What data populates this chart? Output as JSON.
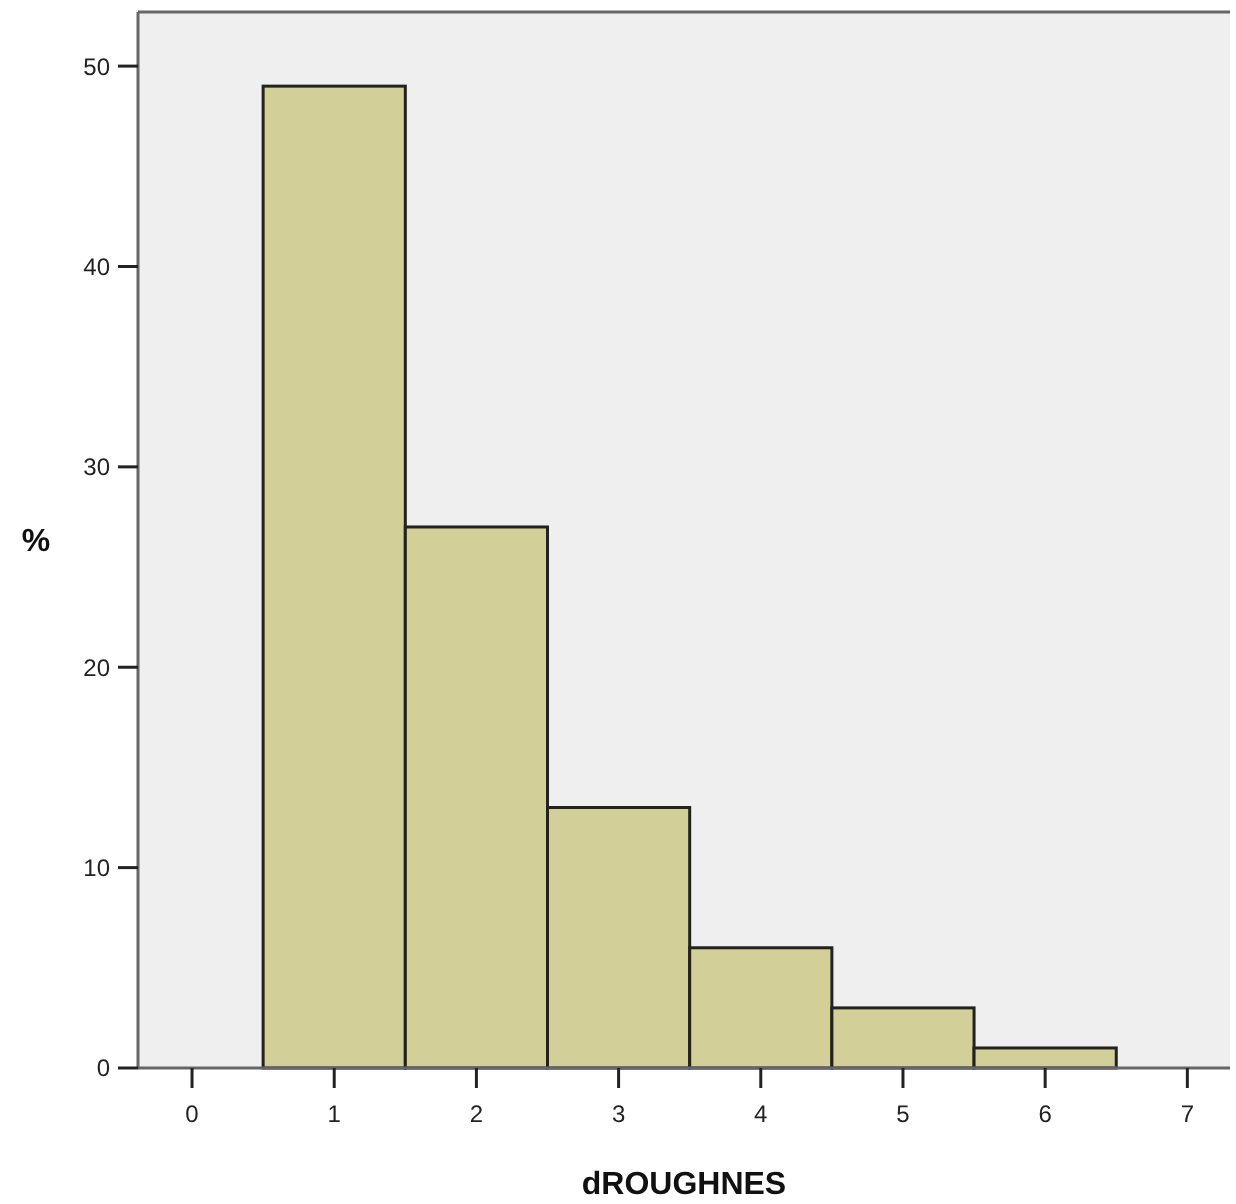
{
  "chart_data": {
    "type": "histogram",
    "xlabel": "dROUGHNES",
    "ylabel": "%",
    "bins": [
      0.5,
      1.5,
      2.5,
      3.5,
      4.5,
      5.5,
      6.5
    ],
    "values": [
      49,
      27,
      13,
      6,
      3,
      1
    ],
    "color": "#d3cf98",
    "xlim": [
      -0.38,
      7.3
    ],
    "ylim": [
      0,
      52.7
    ],
    "xticks": [
      0,
      1,
      2,
      3,
      4,
      5,
      6,
      7
    ],
    "yticks": [
      0,
      10,
      20,
      30,
      40,
      50
    ],
    "grid": false
  }
}
